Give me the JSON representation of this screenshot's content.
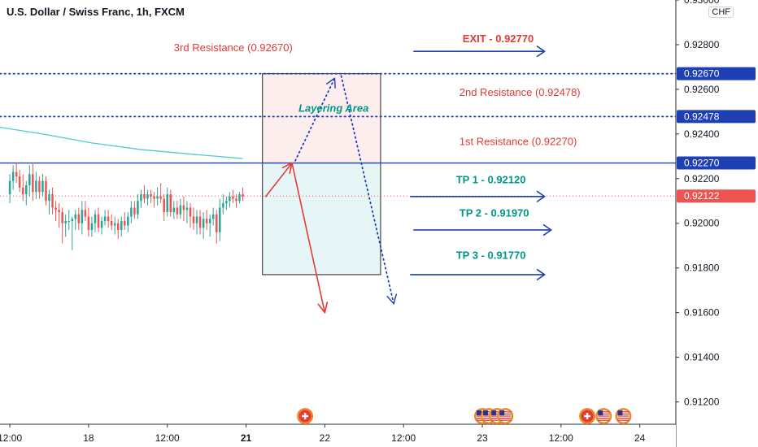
{
  "header": {
    "symbol": "U.S. Dollar / Swiss Franc, 1h, FXCM",
    "currency": "CHF"
  },
  "colors": {
    "bull": "#26a69a",
    "bear": "#ef5350",
    "resistance_line": "#1f3fb5",
    "label_red": "#e53935",
    "label_teal": "#009688",
    "arrow_blue": "#1f3fb5",
    "ma": "#4ecdc4",
    "layer_box_top": "#fdeeee",
    "layer_box_bottom": "#e6f6f6"
  },
  "chart_data": {
    "type": "candlestick",
    "ylim": [
      0.911,
      0.93
    ],
    "y_ticks": [
      "0.93000",
      "0.92800",
      "0.92600",
      "0.92400",
      "0.92200",
      "0.92000",
      "0.91800",
      "0.91600",
      "0.91400",
      "0.91200"
    ],
    "y_tick_values": [
      0.93,
      0.928,
      0.926,
      0.924,
      0.922,
      0.92,
      0.918,
      0.916,
      0.914,
      0.912
    ],
    "x_ticks": [
      "12:00",
      "18",
      "12:00",
      "21",
      "22",
      "12:00",
      "23",
      "12:00",
      "24"
    ],
    "x_tick_values": [
      0,
      24,
      48,
      72,
      96,
      120,
      144,
      168,
      192
    ],
    "x_bold": [
      false,
      false,
      false,
      true,
      false,
      false,
      false,
      false,
      false
    ],
    "xlim": [
      -3,
      203
    ],
    "current_price": 0.92122,
    "current_price_label": "0.92122",
    "candles": [
      {
        "x": 0,
        "o": 0.9213,
        "h": 0.9222,
        "l": 0.9209,
        "c": 0.9219
      },
      {
        "x": 1,
        "o": 0.9219,
        "h": 0.9226,
        "l": 0.9215,
        "c": 0.9223
      },
      {
        "x": 2,
        "o": 0.9223,
        "h": 0.9227,
        "l": 0.9218,
        "c": 0.9221
      },
      {
        "x": 3,
        "o": 0.9221,
        "h": 0.9224,
        "l": 0.9214,
        "c": 0.9216
      },
      {
        "x": 4,
        "o": 0.9216,
        "h": 0.9222,
        "l": 0.921,
        "c": 0.9213
      },
      {
        "x": 5,
        "o": 0.9213,
        "h": 0.9219,
        "l": 0.9208,
        "c": 0.9217
      },
      {
        "x": 6,
        "o": 0.9217,
        "h": 0.9226,
        "l": 0.9212,
        "c": 0.9222
      },
      {
        "x": 7,
        "o": 0.9222,
        "h": 0.9227,
        "l": 0.921,
        "c": 0.9214
      },
      {
        "x": 8,
        "o": 0.9214,
        "h": 0.9223,
        "l": 0.9211,
        "c": 0.9219
      },
      {
        "x": 9,
        "o": 0.9219,
        "h": 0.9221,
        "l": 0.9211,
        "c": 0.9214
      },
      {
        "x": 10,
        "o": 0.9214,
        "h": 0.9222,
        "l": 0.9212,
        "c": 0.9219
      },
      {
        "x": 11,
        "o": 0.9219,
        "h": 0.9221,
        "l": 0.9208,
        "c": 0.921
      },
      {
        "x": 12,
        "o": 0.921,
        "h": 0.9215,
        "l": 0.9204,
        "c": 0.9213
      },
      {
        "x": 13,
        "o": 0.9213,
        "h": 0.9216,
        "l": 0.9204,
        "c": 0.9207
      },
      {
        "x": 14,
        "o": 0.9207,
        "h": 0.921,
        "l": 0.9201,
        "c": 0.9206
      },
      {
        "x": 15,
        "o": 0.9206,
        "h": 0.9209,
        "l": 0.9198,
        "c": 0.9205
      },
      {
        "x": 16,
        "o": 0.9205,
        "h": 0.9207,
        "l": 0.9191,
        "c": 0.92
      },
      {
        "x": 17,
        "o": 0.92,
        "h": 0.9204,
        "l": 0.9194,
        "c": 0.9201
      },
      {
        "x": 18,
        "o": 0.9201,
        "h": 0.9206,
        "l": 0.9197,
        "c": 0.9201
      },
      {
        "x": 19,
        "o": 0.9201,
        "h": 0.9203,
        "l": 0.9188,
        "c": 0.9202
      },
      {
        "x": 20,
        "o": 0.9202,
        "h": 0.9206,
        "l": 0.9197,
        "c": 0.9204
      },
      {
        "x": 21,
        "o": 0.9204,
        "h": 0.9207,
        "l": 0.9197,
        "c": 0.92
      },
      {
        "x": 22,
        "o": 0.92,
        "h": 0.921,
        "l": 0.9195,
        "c": 0.9206
      },
      {
        "x": 23,
        "o": 0.9206,
        "h": 0.921,
        "l": 0.9201,
        "c": 0.9203
      },
      {
        "x": 24,
        "o": 0.9203,
        "h": 0.9207,
        "l": 0.9194,
        "c": 0.9197
      },
      {
        "x": 25,
        "o": 0.9197,
        "h": 0.9203,
        "l": 0.9194,
        "c": 0.92
      },
      {
        "x": 26,
        "o": 0.92,
        "h": 0.9206,
        "l": 0.9196,
        "c": 0.9204
      },
      {
        "x": 27,
        "o": 0.9204,
        "h": 0.9207,
        "l": 0.9196,
        "c": 0.9198
      },
      {
        "x": 28,
        "o": 0.9198,
        "h": 0.9203,
        "l": 0.9195,
        "c": 0.9201
      },
      {
        "x": 29,
        "o": 0.9201,
        "h": 0.9206,
        "l": 0.9199,
        "c": 0.9203
      },
      {
        "x": 30,
        "o": 0.9203,
        "h": 0.9206,
        "l": 0.9198,
        "c": 0.9201
      },
      {
        "x": 31,
        "o": 0.9201,
        "h": 0.9204,
        "l": 0.9197,
        "c": 0.9199
      },
      {
        "x": 32,
        "o": 0.9199,
        "h": 0.9203,
        "l": 0.9195,
        "c": 0.92
      },
      {
        "x": 33,
        "o": 0.92,
        "h": 0.9202,
        "l": 0.9193,
        "c": 0.9197
      },
      {
        "x": 34,
        "o": 0.9197,
        "h": 0.9203,
        "l": 0.9194,
        "c": 0.9201
      },
      {
        "x": 35,
        "o": 0.9201,
        "h": 0.9205,
        "l": 0.9197,
        "c": 0.9199
      },
      {
        "x": 36,
        "o": 0.9199,
        "h": 0.9205,
        "l": 0.9196,
        "c": 0.9203
      },
      {
        "x": 37,
        "o": 0.9203,
        "h": 0.921,
        "l": 0.92,
        "c": 0.9207
      },
      {
        "x": 38,
        "o": 0.9207,
        "h": 0.921,
        "l": 0.9202,
        "c": 0.9204
      },
      {
        "x": 39,
        "o": 0.9204,
        "h": 0.9213,
        "l": 0.9202,
        "c": 0.921
      },
      {
        "x": 40,
        "o": 0.921,
        "h": 0.9215,
        "l": 0.9207,
        "c": 0.9213
      },
      {
        "x": 41,
        "o": 0.9213,
        "h": 0.9217,
        "l": 0.9209,
        "c": 0.9211
      },
      {
        "x": 42,
        "o": 0.9211,
        "h": 0.9215,
        "l": 0.9208,
        "c": 0.9213
      },
      {
        "x": 43,
        "o": 0.9213,
        "h": 0.9215,
        "l": 0.9209,
        "c": 0.9212
      },
      {
        "x": 44,
        "o": 0.9212,
        "h": 0.9214,
        "l": 0.9207,
        "c": 0.9211
      },
      {
        "x": 45,
        "o": 0.9211,
        "h": 0.9216,
        "l": 0.9208,
        "c": 0.9212
      },
      {
        "x": 46,
        "o": 0.9212,
        "h": 0.9218,
        "l": 0.9209,
        "c": 0.9211
      },
      {
        "x": 47,
        "o": 0.9211,
        "h": 0.9213,
        "l": 0.9201,
        "c": 0.9205
      },
      {
        "x": 48,
        "o": 0.9205,
        "h": 0.9216,
        "l": 0.9203,
        "c": 0.9213
      },
      {
        "x": 49,
        "o": 0.9213,
        "h": 0.9215,
        "l": 0.9203,
        "c": 0.9205
      },
      {
        "x": 50,
        "o": 0.9205,
        "h": 0.921,
        "l": 0.9202,
        "c": 0.9207
      },
      {
        "x": 51,
        "o": 0.9207,
        "h": 0.921,
        "l": 0.9202,
        "c": 0.9204
      },
      {
        "x": 52,
        "o": 0.9204,
        "h": 0.9211,
        "l": 0.9202,
        "c": 0.9208
      },
      {
        "x": 53,
        "o": 0.9208,
        "h": 0.9212,
        "l": 0.9201,
        "c": 0.9206
      },
      {
        "x": 54,
        "o": 0.9206,
        "h": 0.921,
        "l": 0.92,
        "c": 0.9207
      },
      {
        "x": 55,
        "o": 0.9207,
        "h": 0.9209,
        "l": 0.9198,
        "c": 0.9203
      },
      {
        "x": 56,
        "o": 0.9203,
        "h": 0.9207,
        "l": 0.9197,
        "c": 0.92
      },
      {
        "x": 57,
        "o": 0.92,
        "h": 0.9206,
        "l": 0.9195,
        "c": 0.9203
      },
      {
        "x": 58,
        "o": 0.9203,
        "h": 0.9206,
        "l": 0.9195,
        "c": 0.9198
      },
      {
        "x": 59,
        "o": 0.9198,
        "h": 0.9205,
        "l": 0.9193,
        "c": 0.9202
      },
      {
        "x": 60,
        "o": 0.9202,
        "h": 0.9206,
        "l": 0.9197,
        "c": 0.92
      },
      {
        "x": 61,
        "o": 0.92,
        "h": 0.9204,
        "l": 0.9194,
        "c": 0.9202
      },
      {
        "x": 62,
        "o": 0.9202,
        "h": 0.9207,
        "l": 0.9199,
        "c": 0.9204
      },
      {
        "x": 63,
        "o": 0.9204,
        "h": 0.9206,
        "l": 0.9191,
        "c": 0.9196
      },
      {
        "x": 64,
        "o": 0.9196,
        "h": 0.9211,
        "l": 0.9192,
        "c": 0.9207
      },
      {
        "x": 65,
        "o": 0.9207,
        "h": 0.9213,
        "l": 0.9204,
        "c": 0.9209
      },
      {
        "x": 66,
        "o": 0.9209,
        "h": 0.9212,
        "l": 0.9206,
        "c": 0.921
      },
      {
        "x": 67,
        "o": 0.921,
        "h": 0.9214,
        "l": 0.9207,
        "c": 0.9212
      },
      {
        "x": 68,
        "o": 0.9212,
        "h": 0.9215,
        "l": 0.9209,
        "c": 0.9211
      },
      {
        "x": 69,
        "o": 0.9211,
        "h": 0.9213,
        "l": 0.9207,
        "c": 0.921
      },
      {
        "x": 70,
        "o": 0.921,
        "h": 0.9214,
        "l": 0.9209,
        "c": 0.9213
      },
      {
        "x": 71,
        "o": 0.9213,
        "h": 0.9216,
        "l": 0.921,
        "c": 0.9212
      }
    ],
    "ma": {
      "x": [
        -3,
        10,
        25,
        40,
        55,
        71
      ],
      "y": [
        0.9243,
        0.924,
        0.9236,
        0.9233,
        0.9231,
        0.9229
      ]
    },
    "levels": [
      {
        "value": 0.9267,
        "label": "0.92670",
        "style": "dotted"
      },
      {
        "value": 0.92478,
        "label": "0.92478",
        "style": "dotted"
      },
      {
        "value": 0.9227,
        "label": "0.92270",
        "style": "solid"
      }
    ],
    "layer_box": {
      "x0": 77,
      "x1": 113,
      "top": 0.9267,
      "mid": 0.9227,
      "bottom": 0.9177
    },
    "annotations": {
      "third_res": {
        "text": "3rd Resistance (0.92670)",
        "x": 50,
        "y": 0.9277
      },
      "second_res": {
        "text": "2nd Resistance (0.92478)",
        "x": 137,
        "y": 0.9257
      },
      "first_res": {
        "text": "1st Resistance (0.92270)",
        "x": 137,
        "y": 0.9235
      },
      "layering": {
        "text": "Layering Area",
        "x": 88,
        "y": 0.925
      },
      "exit": {
        "text": "EXIT - 0.92770",
        "x": 138,
        "y": 0.9281
      },
      "tp1": {
        "text": "TP 1 - 0.92120",
        "x": 136,
        "y": 0.9218
      },
      "tp2": {
        "text": "TP 2 - 0.91970",
        "x": 137,
        "y": 0.9203
      },
      "tp3": {
        "text": "TP 3 - 0.91770",
        "x": 136,
        "y": 0.9184
      }
    },
    "trade_arrows": [
      {
        "name": "exit-arrow",
        "x0": 123,
        "x1": 163,
        "y": 0.9277
      },
      {
        "name": "tp1-arrow",
        "x0": 122,
        "x1": 163,
        "y": 0.9212
      },
      {
        "name": "tp2-arrow",
        "x0": 123,
        "x1": 165,
        "y": 0.9197
      },
      {
        "name": "tp3-arrow",
        "x0": 122,
        "x1": 163,
        "y": 0.9177
      }
    ],
    "path_up_red": {
      "x0": 78,
      "y0": 0.9212,
      "x1": 86,
      "y1": 0.9227
    },
    "path_down_red": {
      "x0": 86,
      "y0": 0.9227,
      "x1": 96,
      "y1": 0.916
    },
    "path_dotted_up": {
      "x0": 87,
      "y0": 0.9228,
      "x1": 99,
      "y1": 0.9265
    },
    "path_dotted_down": {
      "x0": 101,
      "y0": 0.9266,
      "x1": 117,
      "y1": 0.9164
    },
    "event_icons": [
      {
        "x": 90,
        "type": "ch"
      },
      {
        "x": 144,
        "type": "us"
      },
      {
        "x": 146,
        "type": "us"
      },
      {
        "x": 148.5,
        "type": "us"
      },
      {
        "x": 151,
        "type": "us"
      },
      {
        "x": 176,
        "type": "ch"
      },
      {
        "x": 181,
        "type": "us"
      },
      {
        "x": 187,
        "type": "us"
      }
    ]
  }
}
